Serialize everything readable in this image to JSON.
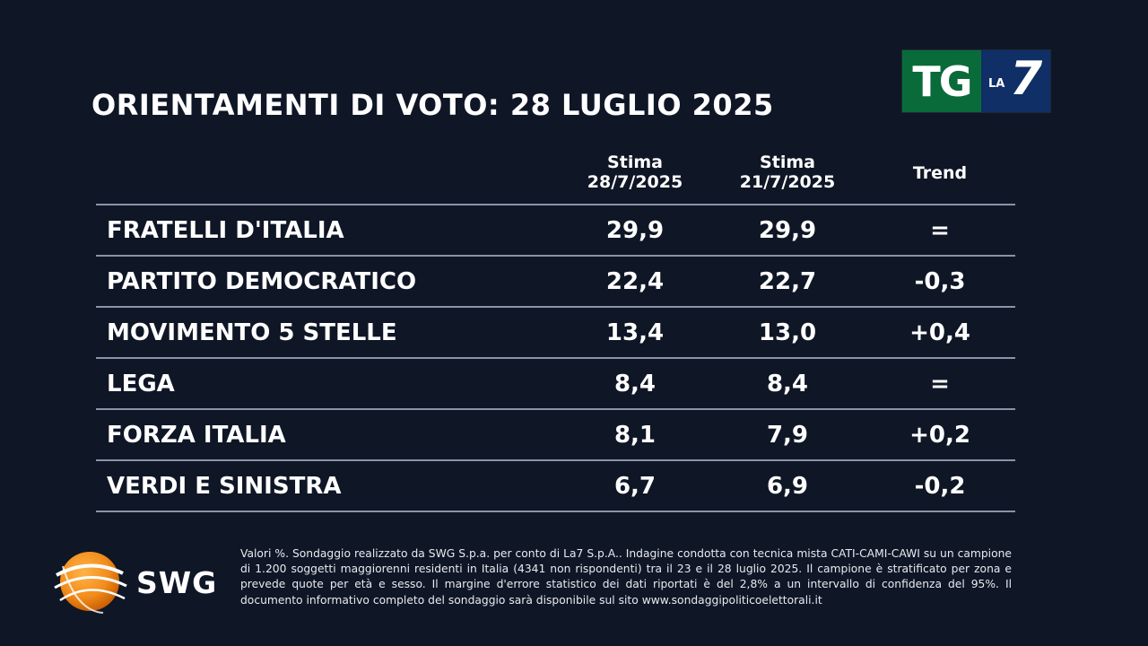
{
  "header": {
    "title": "ORIENTAMENTI DI VOTO: 28 LUGLIO 2025"
  },
  "logos": {
    "tv": {
      "part1": "TG",
      "part2_small": "LA",
      "part2_big": "7"
    },
    "pollster": "SWG"
  },
  "chart_data": {
    "type": "table",
    "title": "ORIENTAMENTI DI VOTO: 28 LUGLIO 2025",
    "columns": [
      {
        "line1": "Stima",
        "line2": "28/7/2025"
      },
      {
        "line1": "Stima",
        "line2": "21/7/2025"
      },
      {
        "line1": "Trend",
        "line2": ""
      }
    ],
    "rows": [
      {
        "party": "FRATELLI D'ITALIA",
        "current": "29,9",
        "previous": "29,9",
        "trend": "="
      },
      {
        "party": "PARTITO DEMOCRATICO",
        "current": "22,4",
        "previous": "22,7",
        "trend": "-0,3"
      },
      {
        "party": "MOVIMENTO 5 STELLE",
        "current": "13,4",
        "previous": "13,0",
        "trend": "+0,4"
      },
      {
        "party": "LEGA",
        "current": "8,4",
        "previous": "8,4",
        "trend": "="
      },
      {
        "party": "FORZA ITALIA",
        "current": "8,1",
        "previous": "7,9",
        "trend": "+0,2"
      },
      {
        "party": "VERDI E SINISTRA",
        "current": "6,7",
        "previous": "6,9",
        "trend": "-0,2"
      }
    ]
  },
  "footnote": "Valori %. Sondaggio realizzato da SWG S.p.a. per conto di La7 S.p.A.. Indagine condotta con tecnica mista CATI-CAMI-CAWI su un campione di 1.200 soggetti maggiorenni residenti in Italia (4341 non rispondenti) tra il 23 e il 28 luglio 2025. Il campione è stratificato per zona e prevede quote per età e sesso. Il margine d'errore statistico dei dati riportati è del 2,8% a un intervallo di confidenza del 95%. Il documento informativo completo del sondaggio sarà disponibile sul sito www.sondaggipoliticoelettorali.it",
  "colors": {
    "background": "#0f1626",
    "tg_green": "#0a6b3a",
    "la7_blue": "#0f2f66",
    "swg_orange": "#f28c1b",
    "divider": "#8b93a6"
  }
}
